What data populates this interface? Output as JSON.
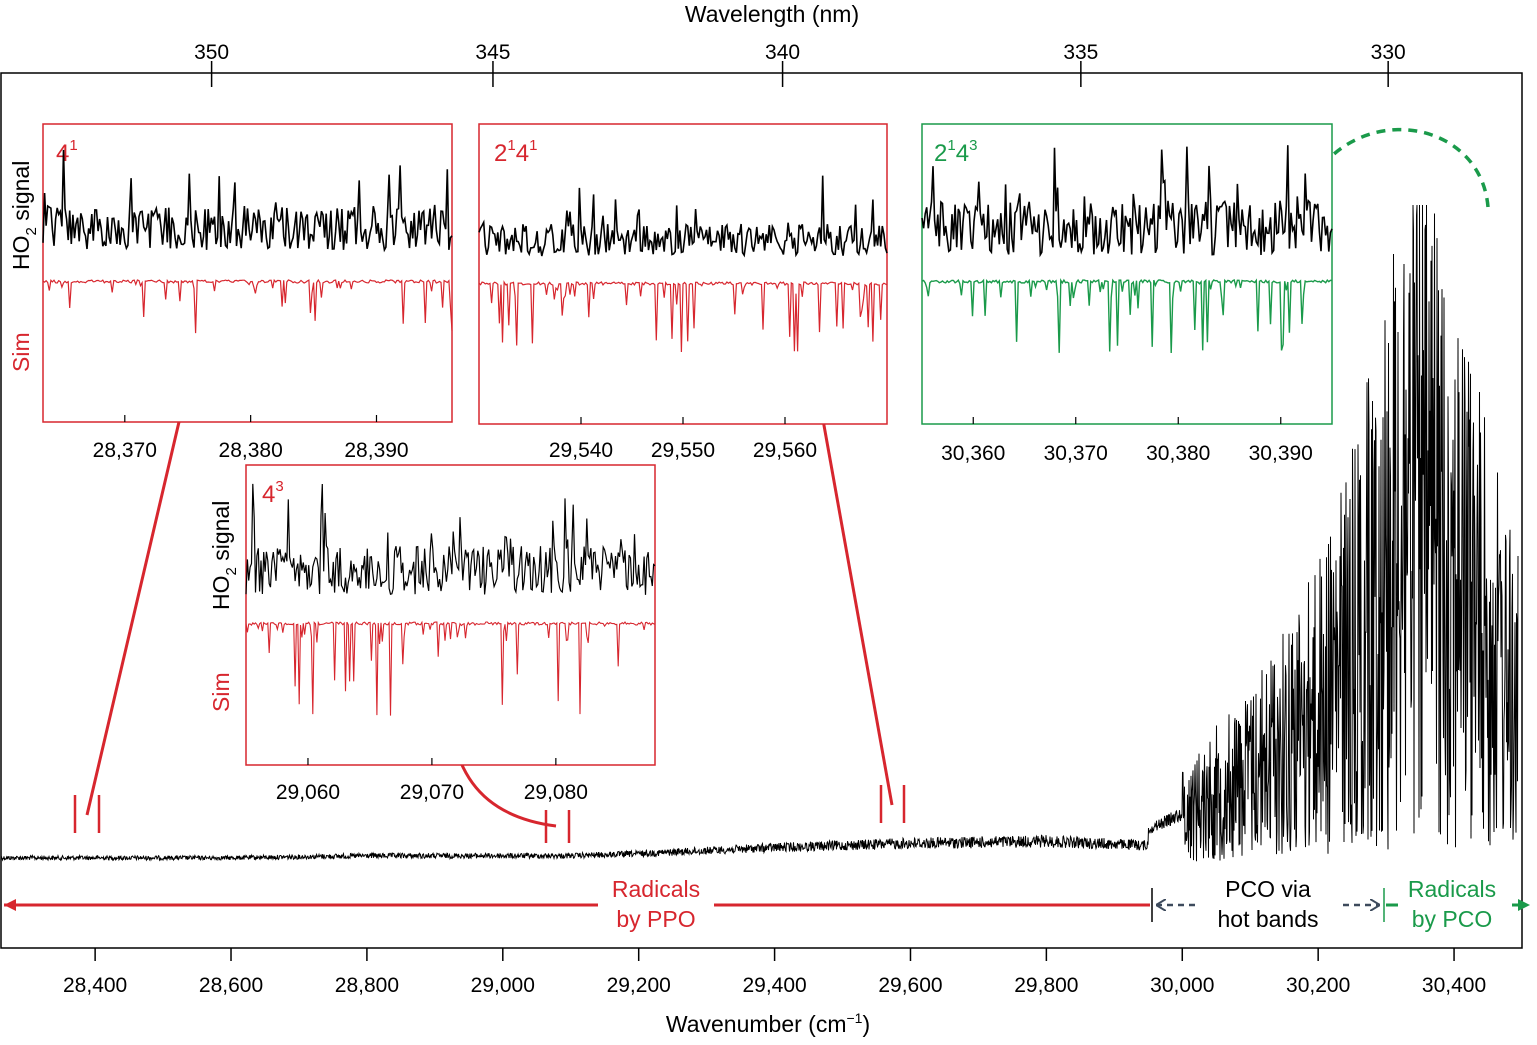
{
  "colors": {
    "black": "#000000",
    "red": "#d7262e",
    "green": "#1a9a4a",
    "slate": "#3d4a5c"
  },
  "chart_data": {
    "type": "line",
    "main": {
      "xlabel": "Wavenumber (cm",
      "xlabel_sup": "−1",
      "xlabel_close": ")",
      "top_xlabel": "Wavelength (nm)",
      "xlim": [
        28260,
        30500
      ],
      "x_ticks": [
        28400,
        28600,
        28800,
        29000,
        29200,
        29400,
        29600,
        29800,
        30000,
        30200,
        30400
      ],
      "x_tick_labels": [
        "28,400",
        "28,600",
        "28,800",
        "29,000",
        "29,200",
        "29,400",
        "29,600",
        "29,800",
        "30,000",
        "30,200",
        "30,400"
      ],
      "top_ticks_nm": [
        350,
        345,
        340,
        335,
        330
      ],
      "top_tick_labels": [
        "350",
        "345",
        "340",
        "335",
        "330"
      ],
      "series": [
        {
          "x": [
            28260,
            28400,
            28600,
            28800,
            29000,
            29100,
            29200,
            29400,
            29600,
            29800,
            29950,
            30000,
            30100,
            30200,
            30260,
            30300,
            30330,
            30360,
            30400,
            30450,
            30490
          ],
          "y": [
            0.02,
            0.02,
            0.02,
            0.03,
            0.03,
            0.03,
            0.04,
            0.07,
            0.09,
            0.1,
            0.08,
            0.12,
            0.22,
            0.38,
            0.55,
            0.75,
            0.9,
            0.85,
            0.75,
            0.55,
            0.4
          ]
        }
      ],
      "regions": [
        {
          "label_line1": "Radicals",
          "label_line2": "by PPO",
          "from": 28260,
          "to": 29950,
          "color": "red"
        },
        {
          "label_line1": "PCO via",
          "label_line2": "hot bands",
          "from": 29950,
          "to": 30295,
          "color": "slate"
        },
        {
          "label_line1": "Radicals",
          "label_line2": "by PCO",
          "from": 30295,
          "to": 30500,
          "color": "green"
        }
      ]
    },
    "insets": [
      {
        "band_label": "4",
        "band_sup": "1",
        "color": "red",
        "ylabel_top": "HO",
        "ylabel_sub": "2",
        "ylabel_rest": " signal",
        "ylabel_bottom": "Sim",
        "x_tick_labels": [
          "28,370",
          "28,380",
          "28,390"
        ],
        "x_ticks": [
          28370,
          28380,
          28390
        ],
        "xlim": [
          28363.5,
          28396
        ]
      },
      {
        "band_label": "2",
        "band_sup": "1",
        "band_label2": "4",
        "band_sup2": "1",
        "color": "red",
        "x_tick_labels": [
          "29,540",
          "29,550",
          "29,560"
        ],
        "x_ticks": [
          29540,
          29550,
          29560
        ],
        "xlim": [
          29530,
          29570
        ]
      },
      {
        "band_label": "2",
        "band_sup": "1",
        "band_label2": "4",
        "band_sup2": "3",
        "color": "green",
        "x_tick_labels": [
          "30,360",
          "30,370",
          "30,380",
          "30,390"
        ],
        "x_ticks": [
          30360,
          30370,
          30380,
          30390
        ],
        "xlim": [
          30355,
          30395
        ]
      },
      {
        "band_label": "4",
        "band_sup": "3",
        "color": "red",
        "ylabel_top": "HO",
        "ylabel_sub": "2",
        "ylabel_rest": " signal",
        "ylabel_bottom": "Sim",
        "x_tick_labels": [
          "29,060",
          "29,070",
          "29,080"
        ],
        "x_ticks": [
          29060,
          29070,
          29080
        ],
        "xlim": [
          29055,
          29088
        ]
      }
    ]
  }
}
